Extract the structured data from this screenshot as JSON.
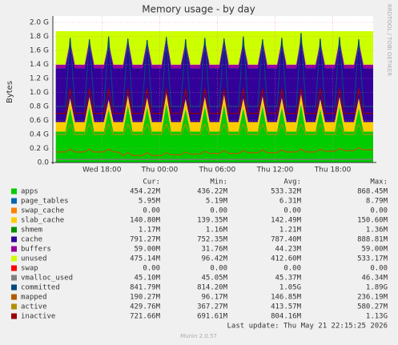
{
  "chart_data": {
    "type": "stacked-area",
    "title": "Memory usage - by day",
    "y_label": "Bytes",
    "side_text": "RRDTOOL / TOBI OETIKER",
    "legend_headers": [
      "Cur:",
      "Min:",
      "Avg:",
      "Max:"
    ],
    "last_update": "Last update: Thu May 21 22:15:25 2026",
    "footer": "Munin 2.0.57",
    "grid": true,
    "xlim": [
      0,
      33.3
    ],
    "xticks": [
      {
        "value": 5.1,
        "label": "Wed 18:00"
      },
      {
        "value": 11.1,
        "label": "Thu 00:00"
      },
      {
        "value": 17.1,
        "label": "Thu 06:00"
      },
      {
        "value": 23.1,
        "label": "Thu 12:00"
      },
      {
        "value": 29.1,
        "label": "Thu 18:00"
      }
    ],
    "ylim": [
      0,
      2.0
    ],
    "yticks": [
      {
        "value": 0,
        "label": "0.0"
      },
      {
        "value": 0.2,
        "label": "0.2 G"
      },
      {
        "value": 0.4,
        "label": "0.4 G"
      },
      {
        "value": 0.6,
        "label": "0.6 G"
      },
      {
        "value": 0.8,
        "label": "0.8 G"
      },
      {
        "value": 1.0,
        "label": "1.0 G"
      },
      {
        "value": 1.2,
        "label": "1.2 G"
      },
      {
        "value": 1.4,
        "label": "1.4 G"
      },
      {
        "value": 1.6,
        "label": "1.6 G"
      },
      {
        "value": 1.8,
        "label": "1.8 G"
      },
      {
        "value": 2.0,
        "label": "2.0 G"
      }
    ],
    "x": [
      0.3,
      0.8,
      1.3,
      1.8,
      2.3,
      2.8,
      3.3,
      3.8,
      4.3,
      4.8,
      5.3,
      5.8,
      6.3,
      6.8,
      7.3,
      7.8,
      8.3,
      8.8,
      9.3,
      9.8,
      10.3,
      10.8,
      11.3,
      11.8,
      12.3,
      12.8,
      13.3,
      13.8,
      14.3,
      14.8,
      15.3,
      15.8,
      16.3,
      16.8,
      17.3,
      17.8,
      18.3,
      18.8,
      19.3,
      19.8,
      20.3,
      20.8,
      21.3,
      21.8,
      22.3,
      22.8,
      23.3,
      23.8,
      24.3,
      24.8,
      25.3,
      25.8,
      26.3,
      26.8,
      27.3,
      27.8,
      28.3,
      28.8,
      29.3,
      29.8,
      30.3,
      30.8,
      31.3,
      31.8,
      32.3,
      32.8,
      33.3
    ],
    "series": [
      {
        "name": "apps",
        "color": "#00cc00",
        "draw": "area",
        "cur": "454.22M",
        "min": "436.22M",
        "avg": "533.32M",
        "max": "868.45M",
        "values": [
          0.44,
          0.44,
          0.44,
          0.78,
          0.44,
          0.44,
          0.44,
          0.8,
          0.44,
          0.44,
          0.44,
          0.76,
          0.44,
          0.44,
          0.44,
          0.82,
          0.44,
          0.44,
          0.44,
          0.79,
          0.44,
          0.44,
          0.44,
          0.85,
          0.44,
          0.44,
          0.44,
          0.77,
          0.44,
          0.44,
          0.44,
          0.8,
          0.44,
          0.44,
          0.44,
          0.83,
          0.44,
          0.44,
          0.44,
          0.78,
          0.44,
          0.44,
          0.44,
          0.81,
          0.44,
          0.44,
          0.44,
          0.79,
          0.44,
          0.44,
          0.44,
          0.84,
          0.44,
          0.44,
          0.44,
          0.77,
          0.44,
          0.44,
          0.44,
          0.8,
          0.44,
          0.44,
          0.44,
          0.78,
          0.44,
          0.44,
          0.44
        ]
      },
      {
        "name": "page_tables",
        "color": "#0066b3",
        "cur": "5.95M",
        "min": "5.19M",
        "avg": "6.31M",
        "max": "8.79M"
      },
      {
        "name": "swap_cache",
        "color": "#ff8000",
        "cur": "0.00",
        "min": "0.00",
        "avg": "0.00",
        "max": "0.00"
      },
      {
        "name": "slab_cache",
        "color": "#ffcc00",
        "draw": "area",
        "cur": "140.80M",
        "min": "139.35M",
        "avg": "142.49M",
        "max": "150.60M",
        "values": [
          0.137,
          0.137,
          0.137,
          0.137,
          0.137,
          0.137,
          0.137,
          0.137,
          0.137,
          0.137,
          0.137,
          0.137,
          0.137,
          0.137,
          0.137,
          0.137,
          0.137,
          0.137,
          0.137,
          0.137,
          0.137,
          0.137,
          0.137,
          0.137,
          0.137,
          0.137,
          0.137,
          0.137,
          0.137,
          0.137,
          0.137,
          0.137,
          0.137,
          0.137,
          0.137,
          0.137,
          0.137,
          0.137,
          0.137,
          0.137,
          0.137,
          0.137,
          0.137,
          0.137,
          0.137,
          0.137,
          0.137,
          0.137,
          0.137,
          0.137,
          0.137,
          0.137,
          0.137,
          0.137,
          0.137,
          0.137,
          0.137,
          0.137,
          0.137,
          0.137,
          0.137,
          0.137,
          0.137,
          0.137,
          0.137,
          0.137,
          0.137
        ]
      },
      {
        "name": "shmem",
        "color": "#008f00",
        "cur": "1.17M",
        "min": "1.16M",
        "avg": "1.21M",
        "max": "1.36M"
      },
      {
        "name": "cache",
        "color": "#330099",
        "draw": "area",
        "cur": "791.27M",
        "min": "752.35M",
        "avg": "787.40M",
        "max": "888.81M",
        "values": [
          0.77,
          0.77,
          0.77,
          0.77,
          0.77,
          0.77,
          0.77,
          0.77,
          0.77,
          0.77,
          0.77,
          0.77,
          0.77,
          0.77,
          0.77,
          0.77,
          0.77,
          0.77,
          0.77,
          0.77,
          0.77,
          0.77,
          0.77,
          0.77,
          0.77,
          0.77,
          0.77,
          0.77,
          0.77,
          0.77,
          0.77,
          0.77,
          0.77,
          0.77,
          0.77,
          0.77,
          0.77,
          0.77,
          0.77,
          0.77,
          0.77,
          0.77,
          0.77,
          0.77,
          0.77,
          0.77,
          0.77,
          0.77,
          0.77,
          0.77,
          0.77,
          0.77,
          0.77,
          0.77,
          0.77,
          0.77,
          0.77,
          0.77,
          0.77,
          0.77,
          0.77,
          0.77,
          0.77,
          0.77,
          0.77,
          0.77,
          0.77
        ]
      },
      {
        "name": "buffers",
        "color": "#990099",
        "draw": "area",
        "cur": "59.00M",
        "min": "31.76M",
        "avg": "44.23M",
        "max": "59.00M",
        "values": [
          0.05,
          0.05,
          0.05,
          0.05,
          0.05,
          0.05,
          0.05,
          0.05,
          0.05,
          0.05,
          0.05,
          0.05,
          0.05,
          0.05,
          0.05,
          0.05,
          0.05,
          0.05,
          0.05,
          0.05,
          0.05,
          0.05,
          0.05,
          0.05,
          0.05,
          0.05,
          0.05,
          0.05,
          0.05,
          0.05,
          0.05,
          0.05,
          0.05,
          0.05,
          0.05,
          0.05,
          0.05,
          0.05,
          0.05,
          0.05,
          0.05,
          0.05,
          0.05,
          0.05,
          0.05,
          0.05,
          0.05,
          0.05,
          0.05,
          0.05,
          0.05,
          0.05,
          0.05,
          0.05,
          0.05,
          0.05,
          0.05,
          0.05,
          0.05,
          0.05,
          0.05,
          0.05,
          0.05,
          0.05,
          0.05,
          0.05,
          0.05
        ]
      },
      {
        "name": "unused",
        "color": "#ccff00",
        "draw": "area",
        "cur": "475.14M",
        "min": "96.42M",
        "avg": "412.60M",
        "max": "533.17M",
        "values": [
          0.478,
          0.478,
          0.478,
          0.138,
          0.478,
          0.478,
          0.478,
          0.118,
          0.478,
          0.478,
          0.478,
          0.158,
          0.478,
          0.478,
          0.478,
          0.098,
          0.478,
          0.478,
          0.478,
          0.128,
          0.478,
          0.478,
          0.478,
          0.068,
          0.478,
          0.478,
          0.478,
          0.148,
          0.478,
          0.478,
          0.478,
          0.118,
          0.478,
          0.478,
          0.478,
          0.088,
          0.478,
          0.478,
          0.478,
          0.138,
          0.478,
          0.478,
          0.478,
          0.108,
          0.478,
          0.478,
          0.478,
          0.128,
          0.478,
          0.478,
          0.478,
          0.078,
          0.478,
          0.478,
          0.478,
          0.148,
          0.478,
          0.478,
          0.478,
          0.118,
          0.478,
          0.478,
          0.478,
          0.138,
          0.478,
          0.478,
          0.478
        ]
      },
      {
        "name": "swap",
        "color": "#ff0000",
        "cur": "0.00",
        "min": "0.00",
        "avg": "0.00",
        "max": "0.00"
      },
      {
        "name": "vmalloc_used",
        "color": "#808080",
        "draw": "line",
        "cur": "45.10M",
        "min": "45.05M",
        "avg": "45.37M",
        "max": "46.34M",
        "values": [
          0.044,
          0.044,
          0.044,
          0.044,
          0.044,
          0.044,
          0.044,
          0.044,
          0.044,
          0.044,
          0.044,
          0.044,
          0.044,
          0.044,
          0.044,
          0.044,
          0.044,
          0.044,
          0.044,
          0.044,
          0.044,
          0.044,
          0.044,
          0.044,
          0.044,
          0.044,
          0.044,
          0.044,
          0.044,
          0.044,
          0.044,
          0.044,
          0.044,
          0.044,
          0.044,
          0.044,
          0.044,
          0.044,
          0.044,
          0.044,
          0.044,
          0.044,
          0.044,
          0.044,
          0.044,
          0.044,
          0.044,
          0.044,
          0.044,
          0.044,
          0.044,
          0.044,
          0.044,
          0.044,
          0.044,
          0.044,
          0.044,
          0.044,
          0.044,
          0.044,
          0.044,
          0.044,
          0.044,
          0.044,
          0.044,
          0.044,
          0.044
        ]
      },
      {
        "name": "committed",
        "color": "#00487d",
        "draw": "line",
        "cur": "841.79M",
        "min": "814.20M",
        "avg": "1.05G",
        "max": "1.89G",
        "values": [
          0.8,
          0.8,
          0.8,
          1.78,
          0.8,
          0.8,
          0.8,
          1.76,
          0.8,
          0.8,
          0.8,
          1.8,
          0.8,
          0.8,
          0.8,
          1.77,
          0.8,
          0.8,
          0.8,
          1.75,
          0.8,
          0.8,
          0.8,
          1.79,
          0.8,
          0.8,
          0.8,
          1.76,
          0.8,
          0.8,
          0.8,
          1.78,
          0.8,
          0.8,
          0.8,
          1.77,
          0.8,
          0.8,
          0.8,
          1.8,
          0.8,
          0.8,
          0.8,
          1.76,
          0.8,
          0.8,
          0.8,
          1.78,
          0.8,
          0.8,
          0.8,
          1.85,
          0.8,
          0.8,
          0.8,
          1.77,
          0.8,
          0.8,
          0.8,
          1.79,
          0.8,
          0.8,
          0.8,
          1.76,
          0.8,
          0.8,
          0.8
        ]
      },
      {
        "name": "mapped",
        "color": "#b35a00",
        "draw": "line",
        "cur": "190.27M",
        "min": "96.17M",
        "avg": "146.85M",
        "max": "236.19M",
        "values": [
          0.15,
          0.15,
          0.15,
          0.19,
          0.15,
          0.15,
          0.15,
          0.19,
          0.15,
          0.15,
          0.15,
          0.19,
          0.15,
          0.15,
          0.1,
          0.14,
          0.1,
          0.1,
          0.1,
          0.14,
          0.1,
          0.1,
          0.1,
          0.14,
          0.11,
          0.11,
          0.11,
          0.15,
          0.12,
          0.12,
          0.12,
          0.16,
          0.13,
          0.13,
          0.13,
          0.17,
          0.13,
          0.13,
          0.13,
          0.17,
          0.14,
          0.14,
          0.14,
          0.18,
          0.14,
          0.14,
          0.14,
          0.18,
          0.15,
          0.15,
          0.15,
          0.19,
          0.15,
          0.15,
          0.15,
          0.19,
          0.16,
          0.16,
          0.16,
          0.2,
          0.17,
          0.17,
          0.17,
          0.21,
          0.18,
          0.18,
          0.18
        ]
      },
      {
        "name": "active",
        "color": "#b38f00",
        "draw": "line",
        "cur": "429.76M",
        "min": "367.27M",
        "avg": "413.57M",
        "max": "580.27M",
        "values": [
          0.4,
          0.4,
          0.4,
          0.55,
          0.4,
          0.4,
          0.4,
          0.55,
          0.4,
          0.4,
          0.4,
          0.55,
          0.4,
          0.4,
          0.4,
          0.55,
          0.4,
          0.4,
          0.4,
          0.55,
          0.4,
          0.4,
          0.4,
          0.55,
          0.4,
          0.4,
          0.4,
          0.55,
          0.4,
          0.4,
          0.4,
          0.55,
          0.4,
          0.4,
          0.4,
          0.55,
          0.4,
          0.4,
          0.4,
          0.55,
          0.4,
          0.4,
          0.4,
          0.55,
          0.4,
          0.4,
          0.4,
          0.55,
          0.4,
          0.4,
          0.4,
          0.55,
          0.4,
          0.4,
          0.4,
          0.55,
          0.4,
          0.4,
          0.4,
          0.55,
          0.4,
          0.4,
          0.4,
          0.55,
          0.4,
          0.4,
          0.4
        ]
      },
      {
        "name": "inactive",
        "color": "#990000",
        "draw": "line",
        "cur": "721.66M",
        "min": "691.61M",
        "avg": "804.16M",
        "max": "1.13G",
        "values": [
          0.7,
          0.7,
          0.7,
          1.05,
          0.7,
          0.7,
          0.7,
          1.05,
          0.7,
          0.7,
          0.7,
          1.05,
          0.7,
          0.7,
          0.7,
          1.05,
          0.7,
          0.7,
          0.7,
          1.05,
          0.7,
          0.7,
          0.7,
          1.05,
          0.7,
          0.7,
          0.7,
          1.05,
          0.7,
          0.7,
          0.7,
          1.05,
          0.7,
          0.7,
          0.7,
          1.05,
          0.7,
          0.7,
          0.7,
          1.05,
          0.7,
          0.7,
          0.7,
          1.05,
          0.7,
          0.7,
          0.7,
          1.05,
          0.7,
          0.7,
          0.7,
          1.05,
          0.7,
          0.7,
          0.7,
          1.05,
          0.7,
          0.7,
          0.7,
          1.05,
          0.7,
          0.7,
          0.7,
          1.05,
          0.7,
          0.7,
          0.7
        ]
      }
    ]
  }
}
